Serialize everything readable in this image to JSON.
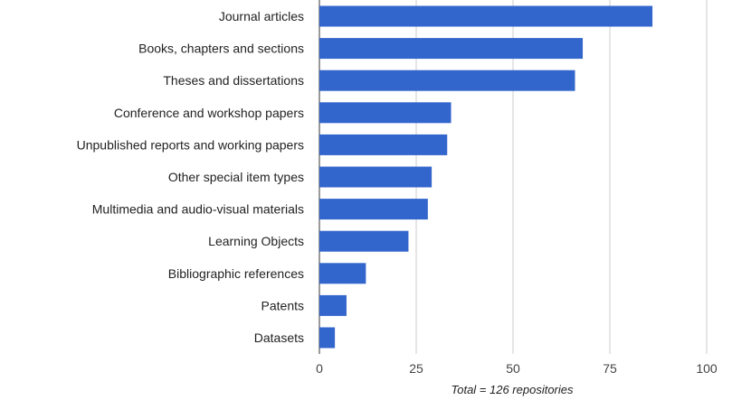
{
  "chart_data": {
    "type": "bar",
    "orientation": "horizontal",
    "categories": [
      "Journal articles",
      "Books, chapters and sections",
      "Theses and dissertations",
      "Conference and workshop papers",
      "Unpublished reports and working papers",
      "Other special item types",
      "Multimedia and audio-visual materials",
      "Learning Objects",
      "Bibliographic references",
      "Patents",
      "Datasets"
    ],
    "values": [
      86,
      68,
      66,
      34,
      33,
      29,
      28,
      23,
      12,
      7,
      4
    ],
    "xlabel": "Total = 126 repositories",
    "ylabel": "",
    "xlim": [
      0,
      100
    ],
    "xticks": [
      0,
      25,
      50,
      75,
      100
    ],
    "grid": true,
    "bar_color": "#3366cc"
  }
}
